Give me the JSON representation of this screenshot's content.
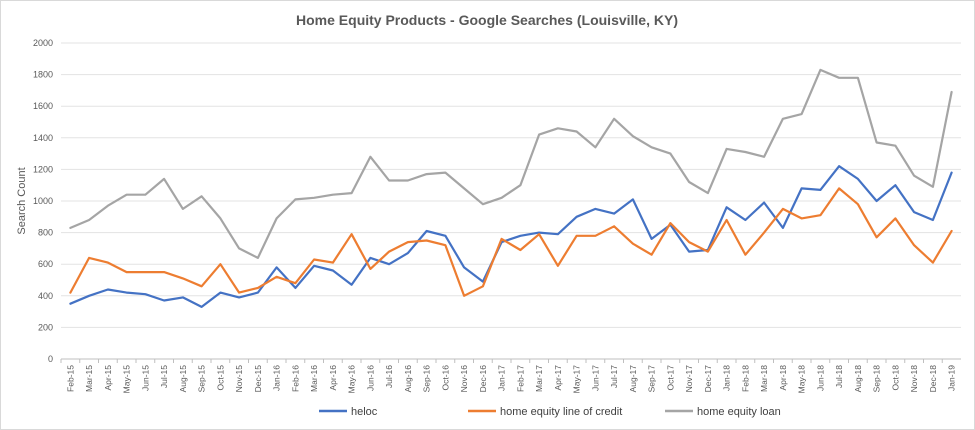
{
  "chart_data": {
    "type": "line",
    "title": "Home Equity Products - Google Searches (Louisville, KY)",
    "xlabel": "",
    "ylabel": "Search Count",
    "ylim": [
      0,
      2000
    ],
    "yticks": [
      0,
      200,
      400,
      600,
      800,
      1000,
      1200,
      1400,
      1600,
      1800,
      2000
    ],
    "grid": true,
    "legend_position": "bottom",
    "categories": [
      "Feb-15",
      "Mar-15",
      "Apr-15",
      "May-15",
      "Jun-15",
      "Jul-15",
      "Aug-15",
      "Sep-15",
      "Oct-15",
      "Nov-15",
      "Dec-15",
      "Jan-16",
      "Feb-16",
      "Mar-16",
      "Apr-16",
      "May-16",
      "Jun-16",
      "Jul-16",
      "Aug-16",
      "Sep-16",
      "Oct-16",
      "Nov-16",
      "Dec-16",
      "Jan-17",
      "Feb-17",
      "Mar-17",
      "Apr-17",
      "May-17",
      "Jun-17",
      "Jul-17",
      "Aug-17",
      "Sep-17",
      "Oct-17",
      "Nov-17",
      "Dec-17",
      "Jan-18",
      "Feb-18",
      "Mar-18",
      "Apr-18",
      "May-18",
      "Jun-18",
      "Jul-18",
      "Aug-18",
      "Sep-18",
      "Oct-18",
      "Nov-18",
      "Dec-18",
      "Jan-19"
    ],
    "series": [
      {
        "name": "heloc",
        "color": "#4472c4",
        "values": [
          350,
          400,
          440,
          420,
          410,
          370,
          390,
          330,
          420,
          390,
          420,
          580,
          450,
          590,
          560,
          470,
          640,
          600,
          670,
          810,
          780,
          580,
          490,
          740,
          780,
          800,
          790,
          900,
          950,
          920,
          1010,
          760,
          850,
          680,
          690,
          960,
          880,
          990,
          830,
          1080,
          1070,
          1220,
          1140,
          1000,
          1100,
          930,
          880,
          1180
        ]
      },
      {
        "name": "home equity line of credit",
        "color": "#ed7d31",
        "values": [
          420,
          640,
          610,
          550,
          550,
          550,
          510,
          460,
          600,
          420,
          450,
          520,
          480,
          630,
          610,
          790,
          570,
          680,
          740,
          750,
          720,
          400,
          460,
          760,
          690,
          790,
          590,
          780,
          780,
          840,
          730,
          660,
          860,
          740,
          680,
          880,
          660,
          800,
          950,
          890,
          910,
          1080,
          980,
          770,
          890,
          720,
          610,
          810
        ]
      },
      {
        "name": "home equity loan",
        "color": "#a5a5a5",
        "values": [
          830,
          880,
          970,
          1040,
          1040,
          1140,
          950,
          1030,
          890,
          700,
          640,
          890,
          1010,
          1020,
          1040,
          1050,
          1280,
          1130,
          1130,
          1170,
          1180,
          1080,
          980,
          1020,
          1100,
          1420,
          1460,
          1440,
          1340,
          1520,
          1410,
          1340,
          1300,
          1120,
          1050,
          1330,
          1310,
          1280,
          1520,
          1550,
          1830,
          1780,
          1780,
          1370,
          1350,
          1160,
          1090,
          1690
        ]
      }
    ]
  }
}
